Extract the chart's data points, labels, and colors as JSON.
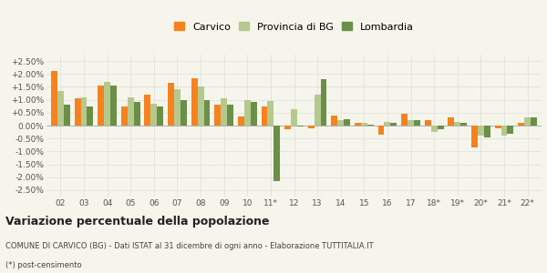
{
  "years": [
    "02",
    "03",
    "04",
    "05",
    "06",
    "07",
    "08",
    "09",
    "10",
    "11*",
    "12",
    "13",
    "14",
    "15",
    "16",
    "17",
    "18*",
    "19*",
    "20*",
    "21*",
    "22*"
  ],
  "carvico": [
    0.021,
    0.0105,
    0.0155,
    0.0075,
    0.012,
    0.0165,
    0.0185,
    0.008,
    0.0035,
    0.0075,
    -0.0015,
    -0.001,
    0.004,
    0.001,
    -0.0035,
    0.0045,
    0.002,
    0.003,
    -0.0085,
    -0.001,
    0.001
  ],
  "provincia_bg": [
    0.0135,
    0.011,
    0.017,
    0.011,
    0.0085,
    0.014,
    0.015,
    0.0105,
    0.01,
    0.0095,
    0.0065,
    0.012,
    0.002,
    0.001,
    0.0015,
    0.002,
    -0.0025,
    0.0015,
    -0.004,
    -0.004,
    0.003
  ],
  "lombardia": [
    0.008,
    0.0075,
    0.0155,
    0.009,
    0.0075,
    0.01,
    0.01,
    0.008,
    0.009,
    -0.0215,
    -0.0005,
    0.018,
    0.0025,
    0.0005,
    0.001,
    0.002,
    -0.0015,
    0.001,
    -0.0045,
    -0.003,
    0.003
  ],
  "color_carvico": "#f5821f",
  "color_provincia": "#b5c98e",
  "color_lombardia": "#6b8f47",
  "ylim_min": -0.0275,
  "ylim_max": 0.0275,
  "yticks": [
    -0.025,
    -0.02,
    -0.015,
    -0.01,
    -0.005,
    0.0,
    0.005,
    0.01,
    0.015,
    0.02,
    0.025
  ],
  "ytick_labels": [
    "-2.50%",
    "-2.00%",
    "-1.50%",
    "-1.00%",
    "-0.50%",
    "0.00%",
    "+0.50%",
    "+1.00%",
    "+1.50%",
    "+2.00%",
    "+2.50%"
  ],
  "title": "Variazione percentuale della popolazione",
  "subtitle": "COMUNE DI CARVICO (BG) - Dati ISTAT al 31 dicembre di ogni anno - Elaborazione TUTTITALIA.IT",
  "footnote": "(*) post-censimento",
  "legend_labels": [
    "Carvico",
    "Provincia di BG",
    "Lombardia"
  ],
  "bg_color": "#f5f5eb",
  "grid_color": "#dddddd"
}
